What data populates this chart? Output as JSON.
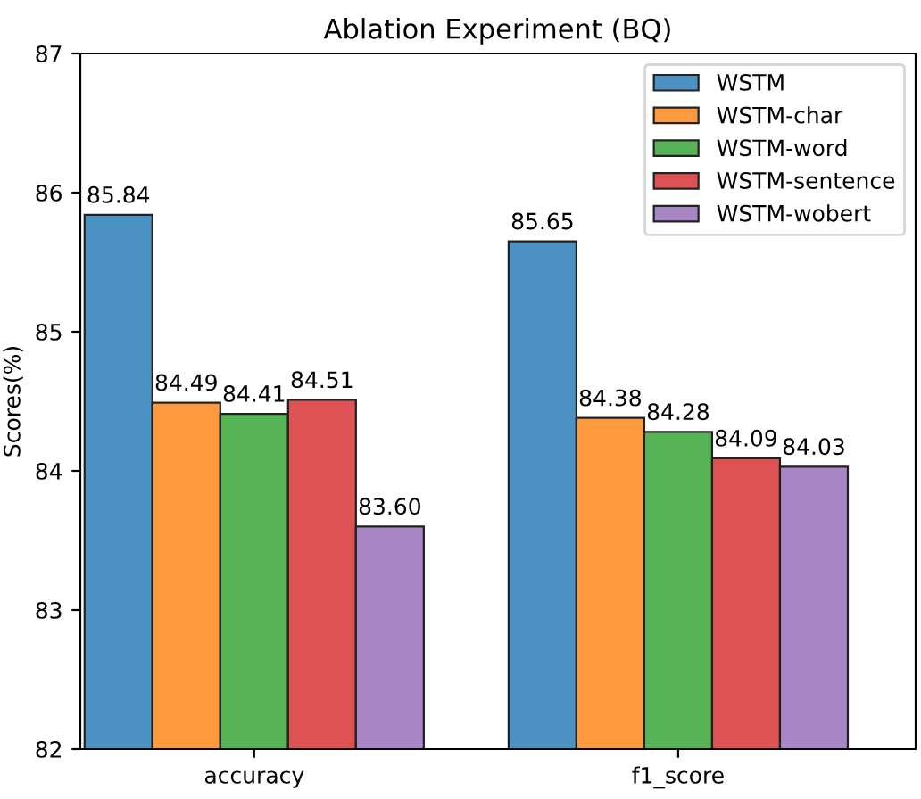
{
  "chart_data": {
    "type": "bar",
    "title": "Ablation Experiment (BQ)",
    "ylabel": "Scores(%)",
    "categories": [
      "accuracy",
      "f1_score"
    ],
    "series": [
      {
        "name": "WSTM",
        "color": "#4b92c3",
        "values": [
          85.84,
          85.65
        ],
        "value_labels": [
          "85.84",
          "85.65"
        ]
      },
      {
        "name": "WSTM-char",
        "color": "#ff993e",
        "values": [
          84.49,
          84.38
        ],
        "value_labels": [
          "84.49",
          "84.38"
        ]
      },
      {
        "name": "WSTM-word",
        "color": "#56b356",
        "values": [
          84.41,
          84.28
        ],
        "value_labels": [
          "84.41",
          "84.28"
        ]
      },
      {
        "name": "WSTM-sentence",
        "color": "#de5253",
        "values": [
          84.51,
          84.09
        ],
        "value_labels": [
          "84.51",
          "84.09"
        ]
      },
      {
        "name": "WSTM-wobert",
        "color": "#a886c6",
        "values": [
          83.6,
          84.03
        ],
        "value_labels": [
          "83.60",
          "84.03"
        ]
      }
    ],
    "ylim": [
      82,
      87
    ],
    "yticks": [
      82,
      83,
      84,
      85,
      86,
      87
    ],
    "grid": false,
    "legend": "top right"
  }
}
